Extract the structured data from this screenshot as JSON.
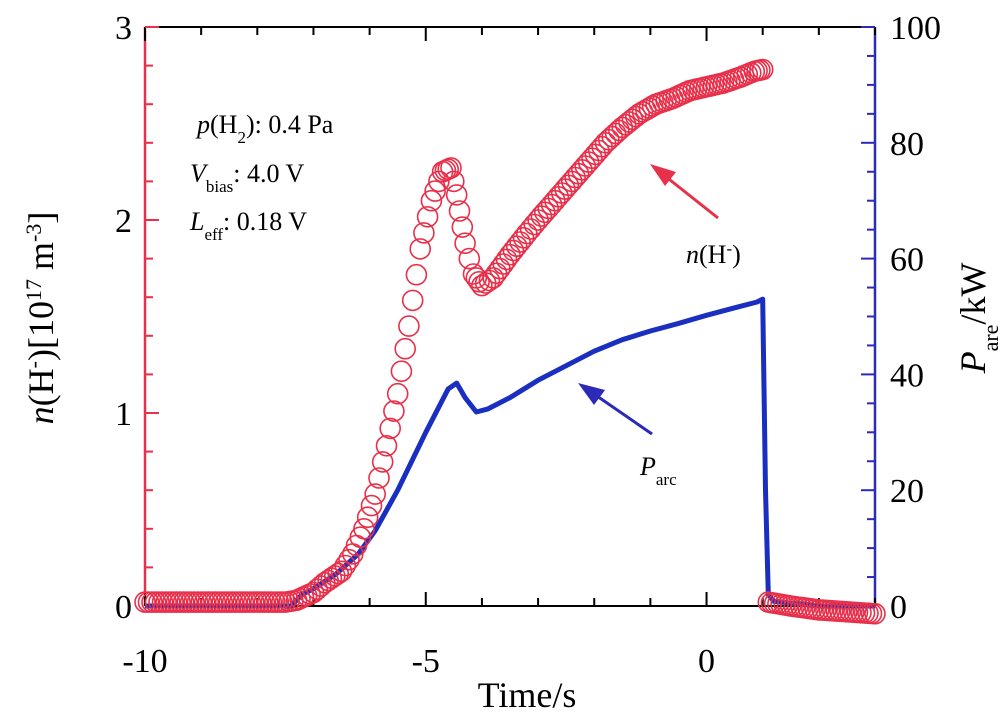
{
  "chart_data": {
    "type": "line",
    "xlabel": "Time/s",
    "x_ticks": [
      "-10",
      "-5",
      "0"
    ],
    "xlim": [
      -10,
      3
    ],
    "ylabel_left": {
      "main": "n",
      "paren": "(H",
      "sup1": "-",
      "paren_close": ")[10",
      "sup2": "17",
      "mid": " m",
      "sup3": "-3",
      "end": "]"
    },
    "ylim_left": [
      0,
      3
    ],
    "y_ticks_left": [
      "0",
      "1",
      "2",
      "3"
    ],
    "ylabel_right": {
      "main": "P",
      "sub": "are",
      "rest": "/kW"
    },
    "ylim_right": [
      0,
      100
    ],
    "y_ticks_right": [
      "0",
      "20",
      "40",
      "60",
      "80",
      "100"
    ],
    "annotations": {
      "pressure": {
        "p": "p",
        "h": "(H",
        "sub": "2",
        "rest": "): 0.4 Pa"
      },
      "bias": {
        "v": "V",
        "sub": "bias",
        "rest": ": 4.0 V"
      },
      "leff": {
        "l": "L",
        "sub": "eff",
        "rest": ": 0.18 V"
      },
      "nh_label": {
        "n": "n",
        "h": "(H",
        "sup": "-",
        "close": ")"
      },
      "parc_label": {
        "p": "P",
        "sub": "arc"
      }
    },
    "colors": {
      "left_axis": "#e8304a",
      "right_axis": "#2b2bb8",
      "nh": "#e8304a",
      "parc": "#1a2fc0"
    },
    "series": [
      {
        "name": "n(H-)",
        "axis": "left",
        "marker": "circle-open",
        "x": [
          -10,
          -9.5,
          -9,
          -8.5,
          -8,
          -7.5,
          -7.3,
          -7.0,
          -6.8,
          -6.5,
          -6.3,
          -6.1,
          -5.9,
          -5.7,
          -5.5,
          -5.3,
          -5.1,
          -4.9,
          -4.7,
          -4.55,
          -4.45,
          -4.3,
          -4.15,
          -4.0,
          -3.8,
          -3.5,
          -3.2,
          -3.0,
          -2.7,
          -2.4,
          -2.1,
          -1.8,
          -1.5,
          -1.2,
          -0.9,
          -0.6,
          -0.3,
          0,
          0.3,
          0.6,
          0.85,
          1.0,
          1.1,
          1.5,
          2.0,
          2.5,
          3.0
        ],
        "y": [
          0.02,
          0.02,
          0.02,
          0.02,
          0.02,
          0.02,
          0.03,
          0.07,
          0.12,
          0.18,
          0.27,
          0.4,
          0.58,
          0.83,
          1.1,
          1.45,
          1.85,
          2.1,
          2.25,
          2.27,
          2.13,
          1.88,
          1.72,
          1.66,
          1.7,
          1.82,
          1.93,
          2.0,
          2.1,
          2.2,
          2.3,
          2.4,
          2.48,
          2.55,
          2.6,
          2.63,
          2.67,
          2.69,
          2.71,
          2.74,
          2.77,
          2.78,
          0.02,
          0.0,
          -0.02,
          -0.03,
          -0.04
        ]
      },
      {
        "name": "Parc",
        "axis": "right",
        "x": [
          -10,
          -8,
          -7.4,
          -7.2,
          -7.0,
          -6.6,
          -6.2,
          -5.9,
          -5.5,
          -5.0,
          -4.6,
          -4.45,
          -4.3,
          -4.1,
          -3.9,
          -3.5,
          -3.0,
          -2.5,
          -2.0,
          -1.5,
          -1.0,
          -0.5,
          0,
          0.5,
          0.9,
          1.0,
          1.05,
          1.1,
          1.2,
          1.5,
          2.0,
          3.0
        ],
        "y": [
          0,
          0,
          0,
          2,
          3,
          5.5,
          9,
          13,
          20,
          30,
          37.5,
          38.5,
          36,
          33.5,
          34,
          36,
          39,
          41.5,
          44,
          46,
          47.5,
          48.8,
          50.2,
          51.5,
          52.5,
          53,
          20,
          2,
          0.8,
          0.5,
          0,
          0
        ]
      }
    ]
  }
}
